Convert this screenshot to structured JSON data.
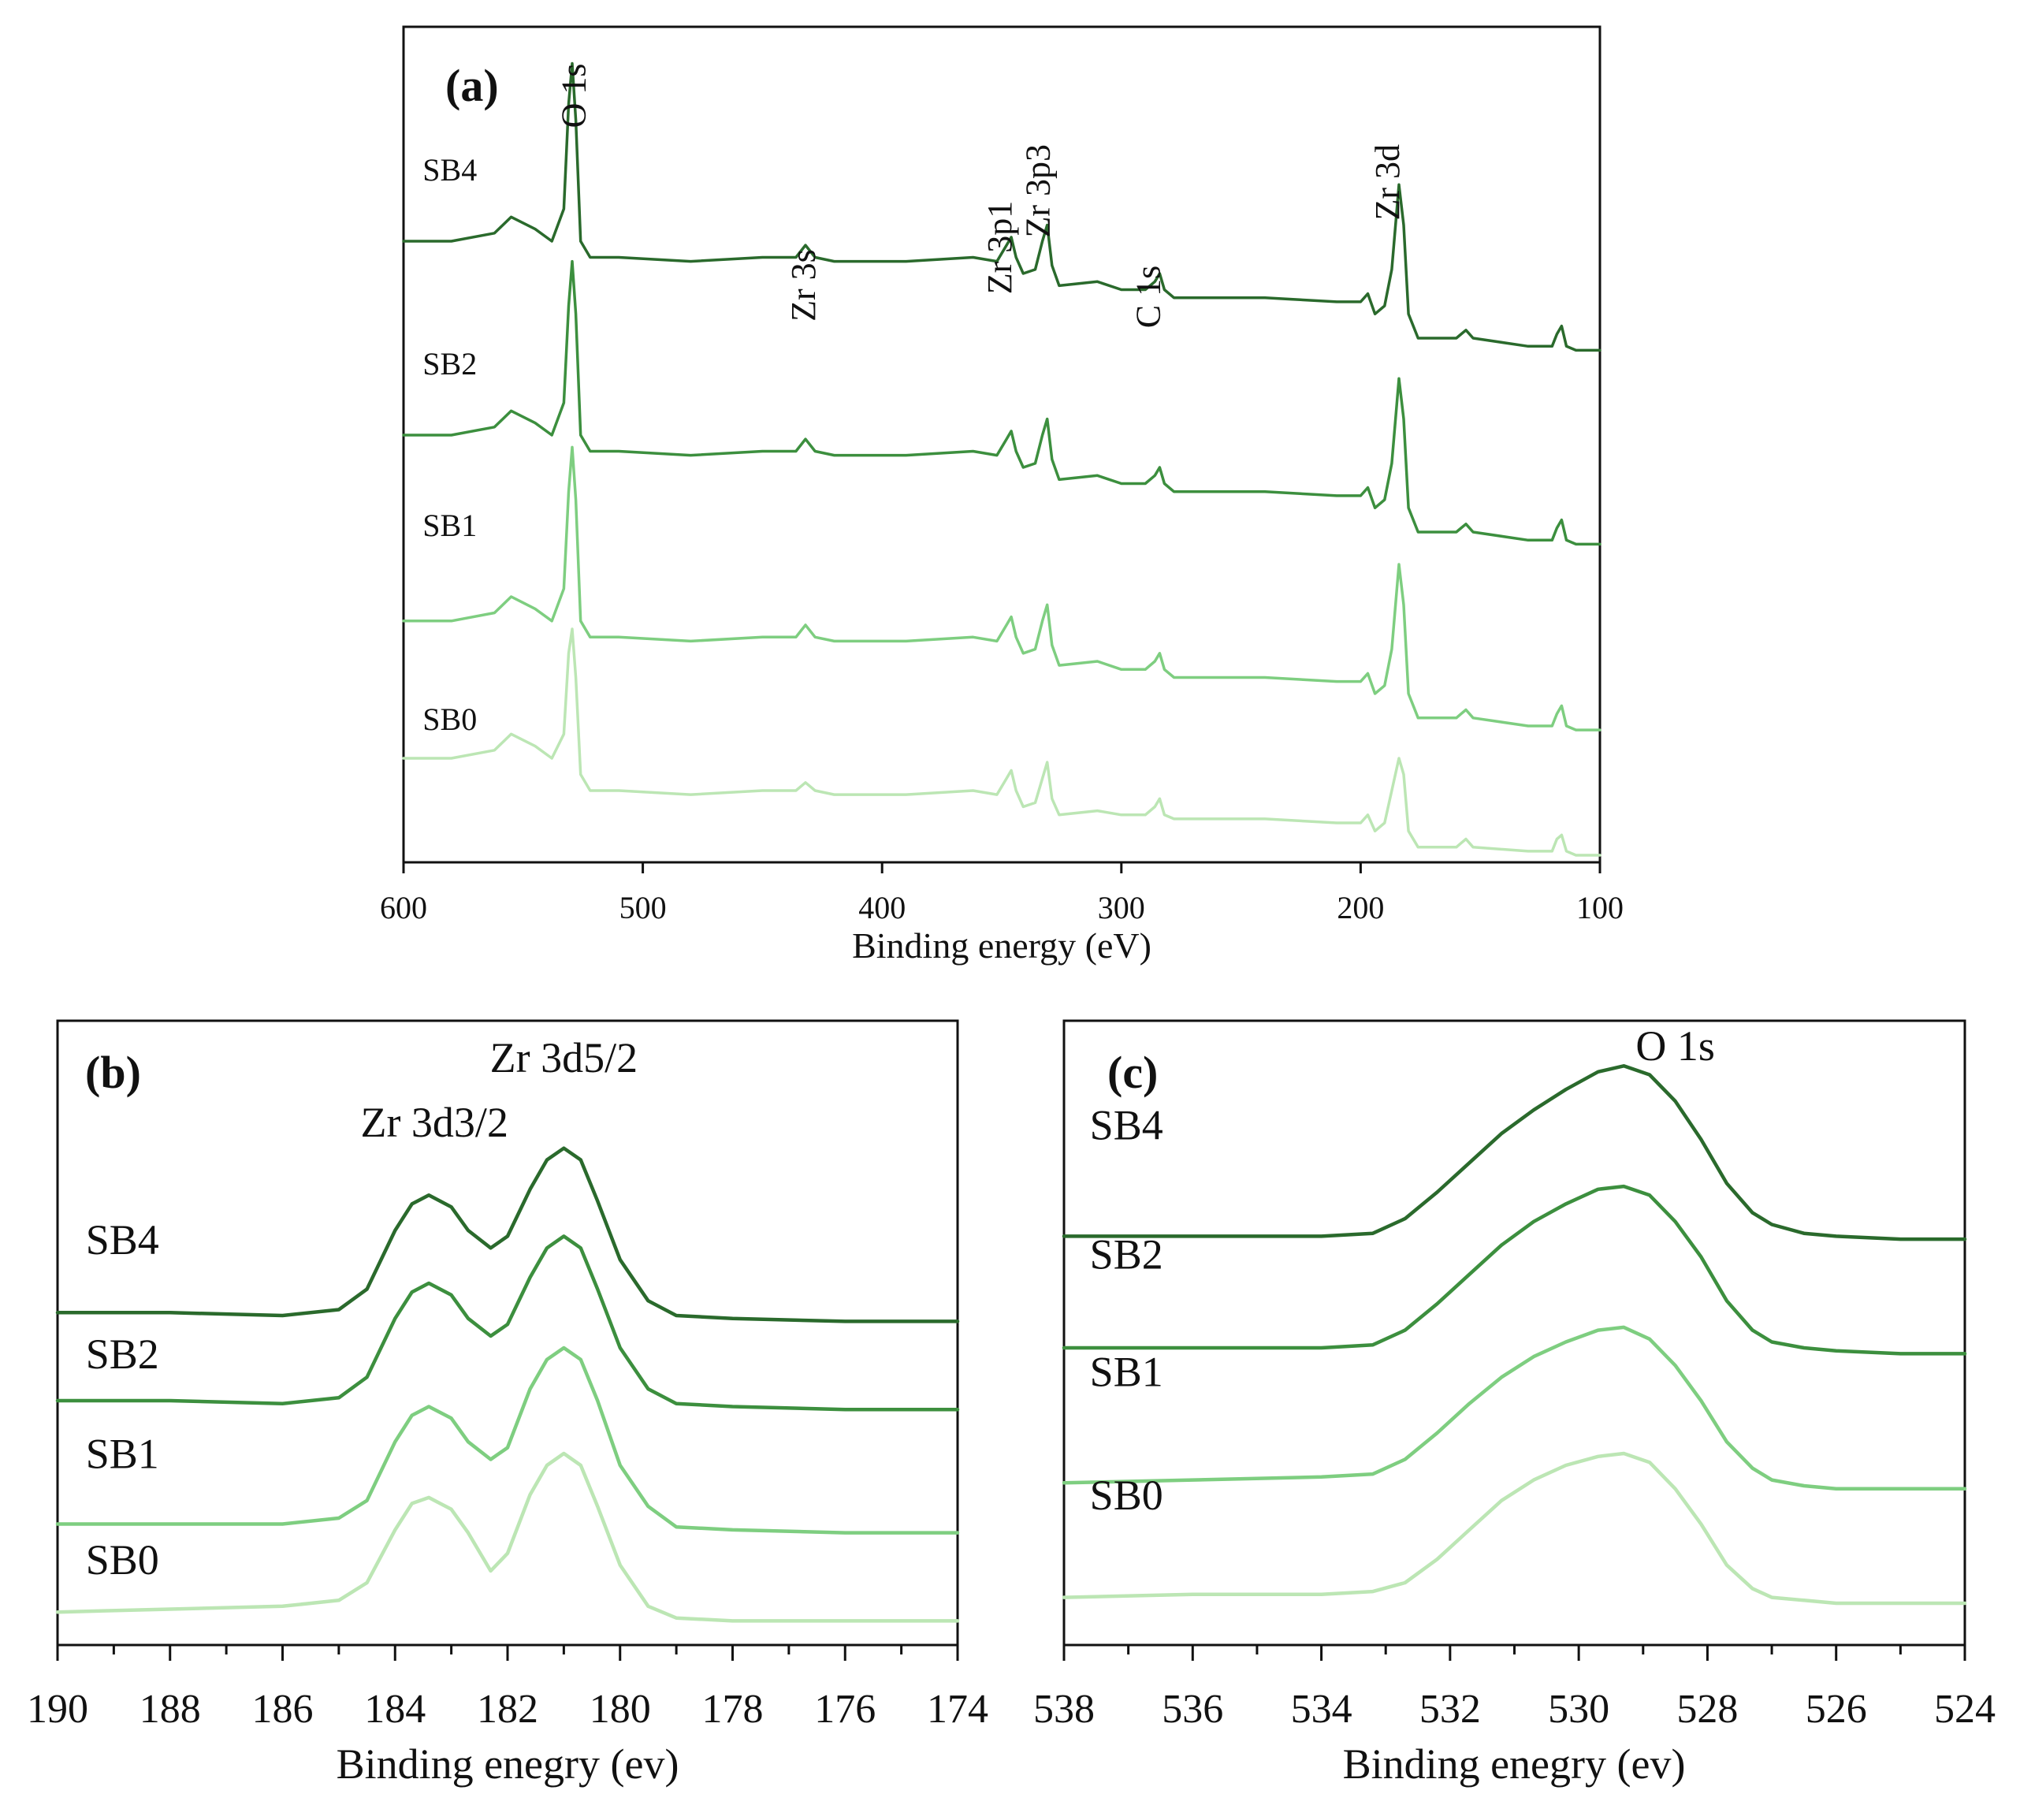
{
  "colors": {
    "SB4": "#2a6a2c",
    "SB2": "#3c8f3e",
    "SB1": "#7ece80",
    "SB0": "#bce6b4",
    "axis": "#111111"
  },
  "chart_data": [
    {
      "id": "a",
      "type": "line",
      "panel_label": "(a)",
      "title": "",
      "xlabel": "Binding energy (eV)",
      "ylabel": "",
      "xlim": [
        600,
        100
      ],
      "ylim": [
        0,
        100
      ],
      "x_ticks": [
        600,
        500,
        400,
        300,
        200,
        100
      ],
      "x_tick_labels": [
        "600",
        "500",
        "400",
        "300",
        "200",
        "100"
      ],
      "x_minor_ticks": [],
      "grid": false,
      "legend": "none",
      "peak_labels": [
        {
          "text": "O 1s",
          "x": 524,
          "y": 98
        },
        {
          "text": "Zr 3s",
          "x": 428,
          "y": 75
        },
        {
          "text": "Zr 3p1",
          "x": 346,
          "y": 81
        },
        {
          "text": "Zr 3p3",
          "x": 330,
          "y": 88
        },
        {
          "text": "C 1s",
          "x": 284,
          "y": 73
        },
        {
          "text": "Zr 3d",
          "x": 184,
          "y": 88
        }
      ],
      "series": [
        {
          "name": "SB4",
          "label_x": 592,
          "label_y": 83.5,
          "x": [
            600,
            580,
            562,
            555,
            545,
            538,
            533,
            531,
            529.5,
            528,
            526,
            522,
            510,
            480,
            450,
            436,
            432,
            428,
            420,
            390,
            362,
            352,
            348,
            346,
            344,
            341,
            336,
            333,
            331,
            329,
            326,
            310,
            300,
            290,
            286,
            284,
            282,
            278,
            260,
            240,
            210,
            200,
            197,
            194,
            190,
            187,
            184,
            182,
            180,
            176,
            160,
            158,
            156,
            153,
            130,
            120,
            118,
            116,
            114,
            110,
            100
          ],
          "y": [
            76,
            76,
            77,
            79,
            77.5,
            76,
            80,
            93,
            98,
            91,
            76,
            74,
            74,
            73.5,
            74,
            74,
            75.5,
            74,
            73.5,
            73.5,
            74,
            73.5,
            75.5,
            76.5,
            74,
            72,
            72.5,
            76,
            78,
            73,
            70.5,
            71,
            70,
            70,
            71,
            72,
            70,
            69,
            69,
            69,
            68.5,
            68.5,
            69.5,
            67,
            68,
            72.5,
            83,
            78,
            67,
            64,
            64,
            64.5,
            65,
            64,
            63,
            63,
            64.5,
            65.5,
            63,
            62.5,
            62.5
          ]
        },
        {
          "name": "SB2",
          "label_x": 592,
          "label_y": 59.5,
          "x": [
            600,
            580,
            562,
            555,
            545,
            538,
            533,
            531,
            529.5,
            528,
            526,
            522,
            510,
            480,
            450,
            436,
            432,
            428,
            420,
            390,
            362,
            352,
            348,
            346,
            344,
            341,
            336,
            333,
            331,
            329,
            326,
            310,
            300,
            290,
            286,
            284,
            282,
            278,
            260,
            240,
            210,
            200,
            197,
            194,
            190,
            187,
            184,
            182,
            180,
            176,
            160,
            158,
            156,
            153,
            130,
            120,
            118,
            116,
            114,
            110,
            100
          ],
          "y": [
            52,
            52,
            53,
            55,
            53.5,
            52,
            56,
            68,
            73.5,
            67,
            52,
            50,
            50,
            49.5,
            50,
            50,
            51.5,
            50,
            49.5,
            49.5,
            50,
            49.5,
            51.5,
            52.5,
            50,
            48,
            48.5,
            52,
            54,
            49,
            46.5,
            47,
            46,
            46,
            47,
            48,
            46,
            45,
            45,
            45,
            44.5,
            44.5,
            45.5,
            43,
            44,
            48.5,
            59,
            54,
            43,
            40,
            40,
            40.5,
            41,
            40,
            39,
            39,
            40.5,
            41.5,
            39,
            38.5,
            38.5
          ]
        },
        {
          "name": "SB1",
          "label_x": 592,
          "label_y": 39.5,
          "x": [
            600,
            580,
            562,
            555,
            545,
            538,
            533,
            531,
            529.5,
            528,
            526,
            522,
            510,
            480,
            450,
            436,
            432,
            428,
            420,
            390,
            362,
            352,
            348,
            346,
            344,
            341,
            336,
            333,
            331,
            329,
            326,
            310,
            300,
            290,
            286,
            284,
            282,
            278,
            260,
            240,
            210,
            200,
            197,
            194,
            190,
            187,
            184,
            182,
            180,
            176,
            160,
            158,
            156,
            153,
            130,
            120,
            118,
            116,
            114,
            110,
            100
          ],
          "y": [
            29,
            29,
            30,
            32,
            30.5,
            29,
            33,
            45,
            50.5,
            44,
            29,
            27,
            27,
            26.5,
            27,
            27,
            28.5,
            27,
            26.5,
            26.5,
            27,
            26.5,
            28.5,
            29.5,
            27,
            25,
            25.5,
            29,
            31,
            26,
            23.5,
            24,
            23,
            23,
            24,
            25,
            23,
            22,
            22,
            22,
            21.5,
            21.5,
            22.5,
            20,
            21,
            25.5,
            36,
            31,
            20,
            17,
            17,
            17.5,
            18,
            17,
            16,
            16,
            17.5,
            18.5,
            16,
            15.5,
            15.5
          ]
        },
        {
          "name": "SB0",
          "label_x": 592,
          "label_y": 15.5,
          "x": [
            600,
            580,
            562,
            555,
            545,
            538,
            533,
            531,
            529.5,
            528,
            526,
            522,
            510,
            480,
            450,
            436,
            432,
            428,
            420,
            390,
            362,
            352,
            348,
            346,
            344,
            341,
            336,
            333,
            331,
            329,
            326,
            310,
            300,
            290,
            286,
            284,
            282,
            278,
            260,
            240,
            210,
            200,
            197,
            194,
            190,
            187,
            184,
            182,
            180,
            176,
            160,
            158,
            156,
            153,
            130,
            120,
            118,
            116,
            114,
            110,
            100
          ],
          "y": [
            12,
            12,
            13,
            15,
            13.5,
            12,
            15,
            25,
            28,
            22,
            10,
            8,
            8,
            7.5,
            8,
            8,
            9,
            8,
            7.5,
            7.5,
            8,
            7.5,
            9.5,
            10.5,
            8,
            6,
            6.5,
            9.5,
            11.5,
            7,
            5,
            5.5,
            5,
            5,
            6,
            7,
            5,
            4.5,
            4.5,
            4.5,
            4,
            4,
            5,
            3,
            4,
            8,
            12,
            10,
            3,
            1,
            1,
            1.5,
            2,
            1,
            0.5,
            0.5,
            2,
            2.5,
            0.5,
            0,
            0
          ]
        }
      ]
    },
    {
      "id": "b",
      "type": "line",
      "panel_label": "(b)",
      "title": "",
      "xlabel": "Binding enegry (ev)",
      "ylabel": "",
      "xlim": [
        190,
        174
      ],
      "ylim": [
        0,
        100
      ],
      "x_ticks": [
        190,
        188,
        186,
        184,
        182,
        180,
        178,
        176,
        174
      ],
      "x_tick_labels": [
        "190",
        "188",
        "186",
        "184",
        "182",
        "180",
        "178",
        "176",
        "174"
      ],
      "x_minor_ticks": [
        189,
        187,
        185,
        183,
        181,
        179,
        177,
        175
      ],
      "grid": false,
      "legend": "none",
      "peak_labels": [
        {
          "text": "Zr 3d3/2",
          "x": 183.3,
          "y": 85
        },
        {
          "text": "Zr 3d5/2",
          "x": 181,
          "y": 96
        }
      ],
      "series": [
        {
          "name": "SB4",
          "label_x": 189.5,
          "label_y": 65,
          "x": [
            190,
            188,
            186,
            185,
            184.5,
            184,
            183.7,
            183.4,
            183,
            182.7,
            182.3,
            182,
            181.6,
            181.3,
            181,
            180.7,
            180.4,
            180,
            179.5,
            179,
            178,
            176,
            174
          ],
          "y": [
            55,
            55,
            54.5,
            55.5,
            59,
            69,
            73.5,
            75,
            73,
            69,
            66,
            68,
            76,
            81,
            83,
            81,
            74,
            64,
            57,
            54.5,
            54,
            53.5,
            53.5
          ]
        },
        {
          "name": "SB2",
          "label_x": 189.5,
          "label_y": 45.5,
          "x": [
            190,
            188,
            186,
            185,
            184.5,
            184,
            183.7,
            183.4,
            183,
            182.7,
            182.3,
            182,
            181.6,
            181.3,
            181,
            180.7,
            180.4,
            180,
            179.5,
            179,
            178,
            176,
            174
          ],
          "y": [
            40,
            40,
            39.5,
            40.5,
            44,
            54,
            58.5,
            60,
            58,
            54,
            51,
            53,
            61,
            66,
            68,
            66,
            59,
            49,
            42,
            39.5,
            39,
            38.5,
            38.5
          ]
        },
        {
          "name": "SB1",
          "label_x": 189.5,
          "label_y": 28.5,
          "x": [
            190,
            188,
            186,
            185,
            184.5,
            184,
            183.7,
            183.4,
            183,
            182.7,
            182.3,
            182,
            181.6,
            181.3,
            181,
            180.7,
            180.4,
            180,
            179.5,
            179,
            178,
            176,
            174
          ],
          "y": [
            19,
            19,
            19,
            20,
            23,
            33,
            37.5,
            39,
            37,
            33,
            30,
            32,
            42,
            47,
            49,
            47,
            40,
            29,
            22,
            18.5,
            18,
            17.5,
            17.5
          ]
        },
        {
          "name": "SB0",
          "label_x": 189.5,
          "label_y": 10.5,
          "x": [
            190,
            188,
            186,
            185,
            184.5,
            184,
            183.7,
            183.4,
            183,
            182.7,
            182.3,
            182,
            181.6,
            181.3,
            181,
            180.7,
            180.4,
            180,
            179.5,
            179,
            178,
            176,
            174
          ],
          "y": [
            4,
            4.5,
            5,
            6,
            9,
            18,
            22.5,
            23.5,
            21.5,
            17.5,
            11,
            14,
            24,
            29,
            31,
            29,
            22,
            12,
            5,
            3,
            2.5,
            2.5,
            2.5
          ]
        }
      ]
    },
    {
      "id": "c",
      "type": "line",
      "panel_label": "(c)",
      "title": "",
      "xlabel": "Binding enegry (ev)",
      "ylabel": "",
      "xlim": [
        538,
        524
      ],
      "ylim": [
        0,
        100
      ],
      "x_ticks": [
        538,
        536,
        534,
        532,
        530,
        528,
        526,
        524
      ],
      "x_tick_labels": [
        "538",
        "536",
        "534",
        "532",
        "530",
        "528",
        "526",
        "524"
      ],
      "x_minor_ticks": [
        537,
        535,
        533,
        531,
        529,
        527,
        525
      ],
      "grid": false,
      "legend": "none",
      "peak_labels": [
        {
          "text": "O 1s",
          "x": 528.5,
          "y": 98
        }
      ],
      "series": [
        {
          "name": "SB4",
          "label_x": 537.6,
          "label_y": 84.5,
          "x": [
            538,
            536,
            534,
            533.2,
            532.7,
            532.2,
            531.7,
            531.2,
            530.7,
            530.2,
            529.7,
            529.3,
            528.9,
            528.5,
            528.1,
            527.7,
            527.3,
            527,
            526.5,
            526,
            525,
            524
          ],
          "y": [
            68,
            68,
            68,
            68.5,
            71,
            75.5,
            80.5,
            85.5,
            89.5,
            93,
            96,
            97,
            95.5,
            91,
            84.5,
            77,
            72,
            70,
            68.5,
            68,
            67.5,
            67.5
          ]
        },
        {
          "name": "SB2",
          "label_x": 537.6,
          "label_y": 62.5,
          "x": [
            538,
            536,
            534,
            533.2,
            532.7,
            532.2,
            531.7,
            531.2,
            530.7,
            530.2,
            529.7,
            529.3,
            528.9,
            528.5,
            528.1,
            527.7,
            527.3,
            527,
            526.5,
            526,
            525,
            524
          ],
          "y": [
            49,
            49,
            49,
            49.5,
            52,
            56.5,
            61.5,
            66.5,
            70.5,
            73.5,
            76,
            76.5,
            75,
            70.5,
            64.5,
            57,
            52,
            50,
            49,
            48.5,
            48,
            48
          ]
        },
        {
          "name": "SB1",
          "label_x": 537.6,
          "label_y": 42.5,
          "x": [
            538,
            536,
            534,
            533.2,
            532.7,
            532.2,
            531.7,
            531.2,
            530.7,
            530.2,
            529.7,
            529.3,
            528.9,
            528.5,
            528.1,
            527.7,
            527.3,
            527,
            526.5,
            526,
            525,
            524
          ],
          "y": [
            26,
            26.5,
            27,
            27.5,
            30,
            34.5,
            39.5,
            44,
            47.5,
            50,
            52,
            52.5,
            50.5,
            46,
            40,
            33,
            28.5,
            26.5,
            25.5,
            25,
            25,
            25
          ]
        },
        {
          "name": "SB0",
          "label_x": 537.6,
          "label_y": 21.5,
          "x": [
            538,
            536,
            534,
            533.2,
            532.7,
            532.2,
            531.7,
            531.2,
            530.7,
            530.2,
            529.7,
            529.3,
            528.9,
            528.5,
            528.1,
            527.7,
            527.3,
            527,
            526.5,
            526,
            525,
            524
          ],
          "y": [
            6.5,
            7,
            7,
            7.5,
            9,
            13,
            18,
            23,
            26.5,
            29,
            30.5,
            31,
            29.5,
            25,
            19,
            12,
            8,
            6.5,
            6,
            5.5,
            5.5,
            5.5
          ]
        }
      ]
    }
  ]
}
